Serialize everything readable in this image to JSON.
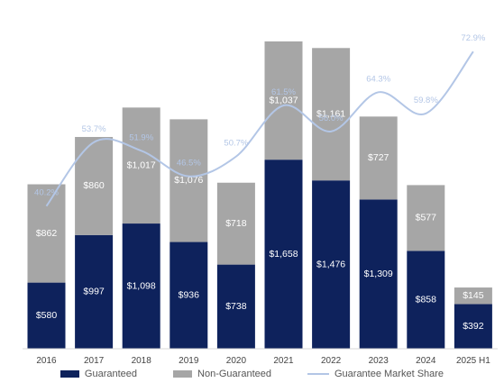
{
  "chart_data": {
    "type": "bar",
    "stacked": true,
    "categories": [
      "2016",
      "2017",
      "2018",
      "2019",
      "2020",
      "2021",
      "2022",
      "2023",
      "2024",
      "2025 H1"
    ],
    "series": [
      {
        "name": "Guaranteed",
        "values": [
          580,
          997,
          1098,
          936,
          738,
          1658,
          1476,
          1309,
          858,
          392
        ],
        "labels": [
          "$580",
          "$997",
          "$1,098",
          "$936",
          "$738",
          "$1,658",
          "$1,476",
          "$1,309",
          "$858",
          "$392"
        ],
        "color": "#0e225c"
      },
      {
        "name": "Non-Guaranteed",
        "values": [
          862,
          860,
          1017,
          1076,
          718,
          1037,
          1161,
          727,
          577,
          145
        ],
        "labels": [
          "$862",
          "$860",
          "$1,017",
          "$1,076",
          "$718",
          "$1,037",
          "$1,161",
          "$727",
          "$577",
          "$145"
        ],
        "color": "#a6a6a6"
      }
    ],
    "line_series": {
      "name": "Guarantee Market Share",
      "values": [
        40.2,
        53.7,
        51.9,
        46.5,
        50.7,
        61.5,
        56.0,
        64.3,
        59.8,
        72.9
      ],
      "labels": [
        "40.2%",
        "53.7%",
        "51.9%",
        "46.5%",
        "50.7%",
        "61.5%",
        "56.0%",
        "64.3%",
        "59.8%",
        "72.9%"
      ],
      "color": "#b3c6e6"
    },
    "ylim": [
      0,
      2900
    ],
    "line_ylim": [
      10,
      80
    ],
    "grid": false,
    "legend_position": "bottom"
  },
  "legend": {
    "guaranteed": "Guaranteed",
    "non_guaranteed": "Non-Guaranteed",
    "market_share": "Guarantee Market Share"
  }
}
